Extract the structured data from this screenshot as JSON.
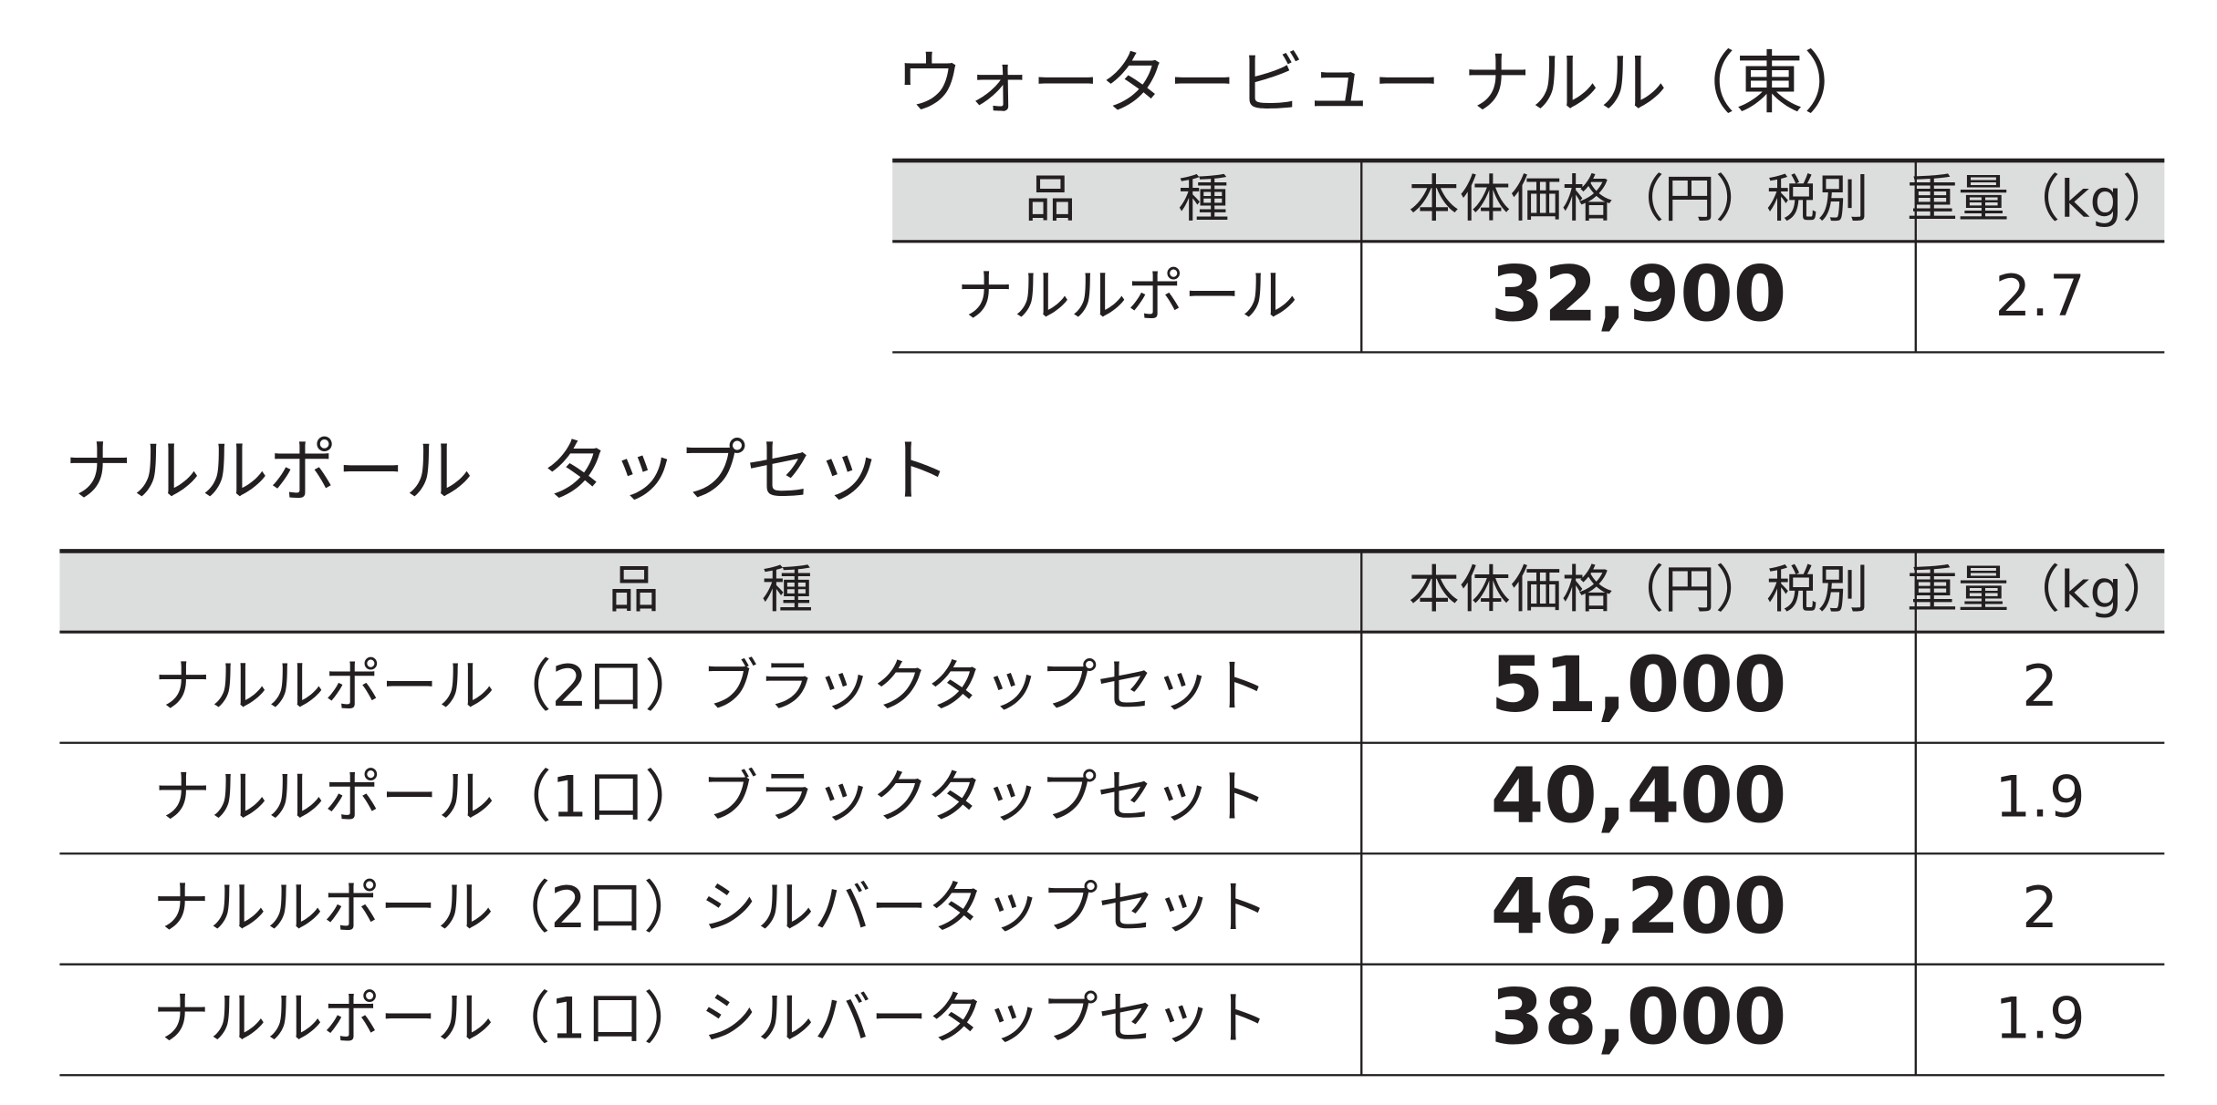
{
  "tables": [
    {
      "title": "ウォータービュー ナルル（東）",
      "header": [
        "品　　種",
        "本体価格（円）税別",
        "重量（kg）"
      ],
      "rows": [
        [
          "ナルルポール",
          "32,900",
          "2.7"
        ]
      ]
    },
    {
      "title": "ナルルポール　タップセット",
      "header": [
        "品　　種",
        "本体価格（円）税別",
        "重量（kg）"
      ],
      "rows": [
        [
          "ナルルポール（2口）ブラックタップセット",
          "51,000",
          "2"
        ],
        [
          "ナルルポール（1口）ブラックタップセット",
          "40,400",
          "1.9"
        ],
        [
          "ナルルポール（2口）シルバータップセット",
          "46,200",
          "2"
        ],
        [
          "ナルルポール（1口）シルバータップセット",
          "38,000",
          "1.9"
        ]
      ]
    }
  ]
}
